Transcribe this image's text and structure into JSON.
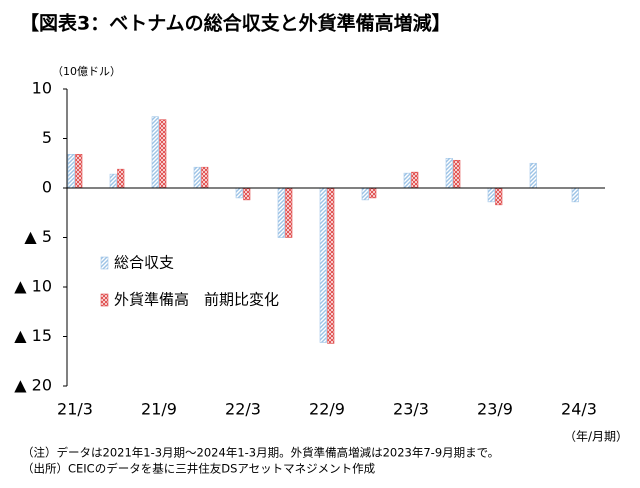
{
  "chart_data": {
    "type": "bar",
    "title": "【図表3：ベトナムの総合収支と外貨準備高増減】",
    "y_unit": "（10億ドル）",
    "x_unit": "（年/月期）",
    "notes": [
      "（注）データは2021年1-3月期～2024年1-3月期。外貨準備高増減は2023年7-9月期まで。",
      "（出所）CEICのデータを基に三井住友DSアセットマネジメント作成"
    ],
    "categories": [
      "21/3",
      null,
      "21/9",
      null,
      "22/3",
      null,
      "22/9",
      null,
      "23/3",
      null,
      "23/9",
      null,
      "24/3"
    ],
    "series": [
      {
        "name": "総合収支",
        "color": "#9dc3e6",
        "values": [
          3.4,
          1.4,
          7.2,
          2.1,
          -1.0,
          -5.0,
          -15.6,
          -1.2,
          1.5,
          3.0,
          -1.4,
          2.5,
          -1.4
        ]
      },
      {
        "name": "外貨準備高　前期比変化",
        "color": "#e05050",
        "values": [
          3.4,
          1.9,
          6.9,
          2.1,
          -1.2,
          -5.0,
          -15.7,
          -1.0,
          1.6,
          2.8,
          -1.7,
          null,
          null
        ]
      }
    ],
    "ylim": [
      -20,
      10
    ],
    "yticks": [
      10,
      5,
      0,
      {
        "value": -5,
        "label": "▲ 5"
      },
      {
        "value": -10,
        "label": "▲ 10"
      },
      {
        "value": -15,
        "label": "▲ 15"
      },
      {
        "value": -20,
        "label": "▲ 20"
      }
    ]
  }
}
